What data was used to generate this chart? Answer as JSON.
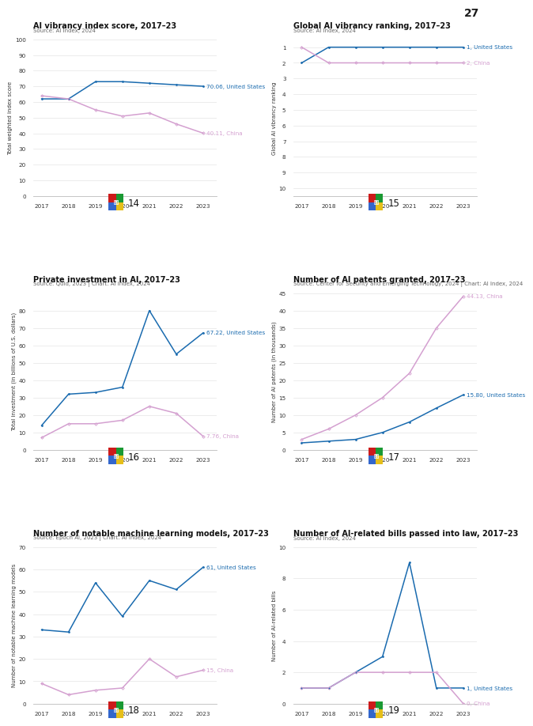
{
  "page_number": "27",
  "years": [
    2017,
    2018,
    2019,
    2020,
    2021,
    2022,
    2023
  ],
  "fig14": {
    "title": "AI vibrancy index score, 2017–23",
    "source": "Source: AI Index, 2024",
    "ylabel": "Total weighted index score",
    "ylim": [
      0,
      100
    ],
    "yticks": [
      0,
      10,
      20,
      30,
      40,
      50,
      60,
      70,
      80,
      90,
      100
    ],
    "us_data": [
      62,
      62,
      73,
      73,
      72,
      71,
      70.06
    ],
    "china_data": [
      64,
      62,
      55,
      51,
      53,
      46,
      40.11
    ],
    "us_label": "70.06, United States",
    "china_label": "40.11, China",
    "fig_num": "14"
  },
  "fig15": {
    "title": "Global AI vibrancy ranking, 2017–23",
    "source": "Source: AI Index, 2024",
    "ylabel": "Global AI vibrancy ranking",
    "ylim": [
      0.5,
      10.5
    ],
    "yticks": [
      1,
      2,
      3,
      4,
      5,
      6,
      7,
      8,
      9,
      10
    ],
    "us_data": [
      2,
      1,
      1,
      1,
      1,
      1,
      1
    ],
    "china_data": [
      1,
      2,
      2,
      2,
      2,
      2,
      2
    ],
    "us_label": "1, United States",
    "china_label": "2, China",
    "fig_num": "15",
    "invert_y": true
  },
  "fig16": {
    "title": "Private investment in AI, 2017–23",
    "source": "Source: Quid, 2023 | Chart: AI Index, 2024",
    "ylabel": "Total investment (in billions of U.S. dollars)",
    "ylim": [
      0,
      90
    ],
    "yticks": [
      0,
      10,
      20,
      30,
      40,
      50,
      60,
      70,
      80
    ],
    "us_data": [
      14,
      32,
      33,
      36,
      80,
      55,
      67.22
    ],
    "china_data": [
      7,
      15,
      15,
      17,
      25,
      21,
      7.76
    ],
    "us_label": "67.22, United States",
    "china_label": "7.76, China",
    "fig_num": "16",
    "invert_y": false
  },
  "fig17": {
    "title": "Number of AI patents granted, 2017–23",
    "source": "Source: Center for Security and Emerging Technology, 2024 | Chart: AI Index, 2024",
    "ylabel": "Number of AI patents (in thousands)",
    "ylim": [
      0,
      45
    ],
    "yticks": [
      0,
      5,
      10,
      15,
      20,
      25,
      30,
      35,
      40,
      45
    ],
    "us_data": [
      2,
      2.5,
      3,
      5,
      8,
      12,
      15.8
    ],
    "china_data": [
      3,
      6,
      10,
      15,
      22,
      35,
      44.13
    ],
    "us_label": "15.80, United States",
    "china_label": "44.13, China",
    "fig_num": "17",
    "invert_y": false
  },
  "fig18": {
    "title": "Number of notable machine learning models, 2017–23",
    "source": "Source: Epoch AI, 2023 | Chart: AI Index, 2024",
    "ylabel": "Number of notable machine learning models",
    "ylim": [
      0,
      70
    ],
    "yticks": [
      0,
      10,
      20,
      30,
      40,
      50,
      60,
      70
    ],
    "us_data": [
      33,
      32,
      54,
      39,
      55,
      51,
      61
    ],
    "china_data": [
      9,
      4,
      6,
      7,
      20,
      12,
      15
    ],
    "us_label": "61, United States",
    "china_label": "15, China",
    "fig_num": "18",
    "invert_y": false
  },
  "fig19": {
    "title": "Number of AI-related bills passed into law, 2017–23",
    "source": "Source: AI Index, 2024",
    "ylabel": "Number of AI-related bills",
    "ylim": [
      0,
      10
    ],
    "yticks": [
      0,
      2,
      4,
      6,
      8,
      10
    ],
    "us_data": [
      1,
      1,
      2,
      3,
      9,
      1,
      1
    ],
    "china_data": [
      1,
      1,
      2,
      2,
      2,
      2,
      0
    ],
    "us_label": "1, United States",
    "china_label": "0, China",
    "fig_num": "19",
    "invert_y": false
  },
  "color_us": "#1a6baf",
  "color_china": "#d4a0d0",
  "background": "#ffffff",
  "grid_color": "#e5e5e5",
  "title_fontsize": 7.0,
  "source_fontsize": 5.0,
  "ylabel_fontsize": 5.0,
  "tick_fontsize": 5.2,
  "annot_fontsize": 5.2,
  "fignum_fontsize": 8.5,
  "figicon_fontsize": 7.0
}
